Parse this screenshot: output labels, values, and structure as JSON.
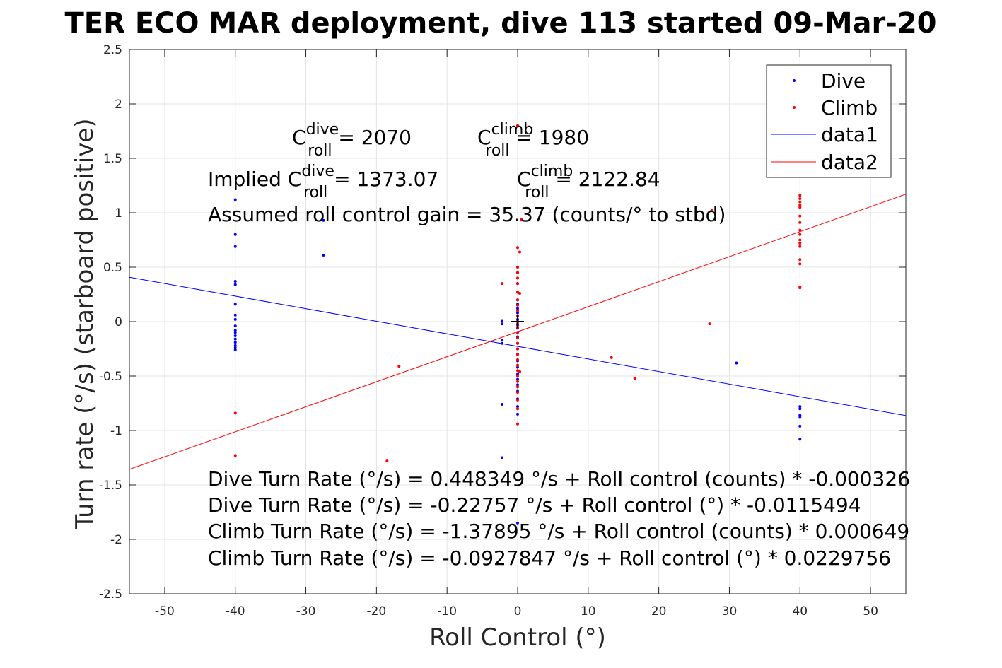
{
  "chart_data": {
    "type": "scatter",
    "title": "TER ECO MAR deployment, dive 113 started 09-Mar-20",
    "xlabel": "Roll Control (°)",
    "ylabel": "Turn rate (°/s) (starboard positive)",
    "xlim": [
      -55,
      55
    ],
    "ylim": [
      -2.5,
      2.5
    ],
    "grid": true,
    "legend_placement": "top-right",
    "x_ticks": [
      "-50",
      "-40",
      "-30",
      "-20",
      "-10",
      "0",
      "10",
      "20",
      "30",
      "40",
      "50"
    ],
    "y_ticks": [
      "-2.5",
      "-2",
      "-1.5",
      "-1",
      "-0.5",
      "0",
      "0.5",
      "1",
      "1.5",
      "2",
      "2.5"
    ],
    "legend": [
      {
        "label": "Dive",
        "marker": "dot",
        "color": "#0000ff"
      },
      {
        "label": "Climb",
        "marker": "dot",
        "color": "#ff0000"
      },
      {
        "label": "data1",
        "marker": "line",
        "color": "#0000ff"
      },
      {
        "label": "data2",
        "marker": "line",
        "color": "#ff0000"
      }
    ],
    "series": [
      {
        "name": "Dive",
        "color": "#0000ff",
        "points": [
          [
            -40,
            1.12
          ],
          [
            -40,
            0.8
          ],
          [
            -40,
            0.69
          ],
          [
            -40,
            0.37
          ],
          [
            -40,
            0.34
          ],
          [
            -40,
            0.16
          ],
          [
            -40,
            0.06
          ],
          [
            -40,
            0.02
          ],
          [
            -40,
            -0.04
          ],
          [
            -40,
            -0.08
          ],
          [
            -40,
            -0.1
          ],
          [
            -40,
            -0.13
          ],
          [
            -40,
            -0.16
          ],
          [
            -40,
            -0.19
          ],
          [
            -40,
            -0.22
          ],
          [
            -40,
            -0.24
          ],
          [
            -40,
            -0.26
          ],
          [
            -27.5,
            0.93
          ],
          [
            -27.5,
            0.61
          ],
          [
            -2.2,
            0.01
          ],
          [
            -2.2,
            -0.02
          ],
          [
            -2.2,
            -0.17
          ],
          [
            -2.2,
            -0.2
          ],
          [
            -2.2,
            -0.76
          ],
          [
            -2.2,
            -1.25
          ],
          [
            0,
            0.45
          ],
          [
            0,
            0.35
          ],
          [
            0,
            0.27
          ],
          [
            0,
            0.2
          ],
          [
            0,
            0.16
          ],
          [
            0,
            0.12
          ],
          [
            0,
            0.08
          ],
          [
            0,
            0.05
          ],
          [
            0,
            0.02
          ],
          [
            0,
            0
          ],
          [
            0,
            -0.03
          ],
          [
            0,
            -0.06
          ],
          [
            0,
            -0.1
          ],
          [
            0,
            -0.14
          ],
          [
            0,
            -0.2
          ],
          [
            0,
            -0.25
          ],
          [
            0,
            -0.3
          ],
          [
            0,
            -0.36
          ],
          [
            0,
            -0.42
          ],
          [
            0,
            -0.48
          ],
          [
            0,
            -0.53
          ],
          [
            0,
            -0.58
          ],
          [
            0,
            -0.64
          ],
          [
            0,
            -0.71
          ],
          [
            0,
            -0.78
          ],
          [
            0,
            -0.85
          ],
          [
            0,
            -1.85
          ],
          [
            31,
            -0.38
          ],
          [
            40,
            -0.78
          ],
          [
            40,
            -0.8
          ],
          [
            40,
            -0.86
          ],
          [
            40,
            -0.88
          ],
          [
            40,
            -0.96
          ],
          [
            40,
            -1.08
          ]
        ]
      },
      {
        "name": "Climb",
        "color": "#ff0000",
        "points": [
          [
            -40,
            -0.84
          ],
          [
            -40,
            -1.23
          ],
          [
            -18.5,
            -1.28
          ],
          [
            -16.8,
            -0.41
          ],
          [
            -2.2,
            0.35
          ],
          [
            0,
            1.8
          ],
          [
            0.5,
            0.94
          ],
          [
            0,
            0.68
          ],
          [
            0.3,
            0.64
          ],
          [
            0,
            0.5
          ],
          [
            0,
            0.45
          ],
          [
            0,
            0.4
          ],
          [
            0,
            0.35
          ],
          [
            0,
            0.27
          ],
          [
            0.3,
            0.26
          ],
          [
            0,
            0.2
          ],
          [
            0,
            0.15
          ],
          [
            0,
            0.1
          ],
          [
            0,
            0.05
          ],
          [
            0,
            -0.02
          ],
          [
            0,
            -0.05
          ],
          [
            0,
            -0.1
          ],
          [
            0,
            -0.15
          ],
          [
            0,
            -0.2
          ],
          [
            0,
            -0.25
          ],
          [
            0,
            -0.3
          ],
          [
            0,
            -0.35
          ],
          [
            0,
            -0.4
          ],
          [
            0,
            -0.45
          ],
          [
            0.3,
            -0.46
          ],
          [
            0,
            -0.5
          ],
          [
            0,
            -0.55
          ],
          [
            0,
            -0.6
          ],
          [
            0,
            -0.65
          ],
          [
            0,
            -0.72
          ],
          [
            0,
            -0.8
          ],
          [
            0,
            -0.94
          ],
          [
            13.3,
            -0.33
          ],
          [
            16.6,
            -0.52
          ],
          [
            27.2,
            -0.02
          ],
          [
            27.5,
            1.02
          ],
          [
            40,
            1.16
          ],
          [
            40,
            1.13
          ],
          [
            40,
            1.1
          ],
          [
            40,
            1.07
          ],
          [
            40,
            1.05
          ],
          [
            40,
            0.97
          ],
          [
            40,
            0.91
          ],
          [
            40,
            0.84
          ],
          [
            40,
            0.8
          ],
          [
            40,
            0.75
          ],
          [
            40,
            0.72
          ],
          [
            40,
            0.69
          ],
          [
            40,
            0.57
          ],
          [
            40,
            0.53
          ],
          [
            40,
            0.32
          ],
          [
            40,
            0.31
          ]
        ]
      }
    ],
    "lines": [
      {
        "name": "data1",
        "color": "#0000ff",
        "intercept": -0.22757,
        "slope": -0.0115494
      },
      {
        "name": "data2",
        "color": "#ff0000",
        "intercept": -0.0927847,
        "slope": 0.0229756
      }
    ],
    "annotations": {
      "c_roll_dive_label": "C",
      "c_roll_dive_sup": "dive",
      "c_roll_dive_sub": "roll",
      "c_roll_dive_val": " = 2070",
      "c_roll_climb_label": "C",
      "c_roll_climb_sup": "climb",
      "c_roll_climb_sub": "roll",
      "c_roll_climb_val": " = 1980",
      "implied_prefix": "Implied C",
      "implied_dive_sup": "dive",
      "implied_dive_sub": "roll",
      "implied_dive_val": " = 1373.07",
      "implied_climb_label": "C",
      "implied_climb_sup": "climb",
      "implied_climb_sub": "roll",
      "implied_climb_val": " = 2122.84",
      "gain": "Assumed roll control gain = 35.37 (counts/° to stbd)",
      "eq1": "Dive Turn Rate (°/s) = 0.448349 °/s + Roll control (counts) * -0.000326",
      "eq2": "Dive Turn Rate (°/s) = -0.22757 °/s + Roll control (°) * -0.0115494",
      "eq3": "Climb Turn Rate (°/s) = -1.37895 °/s + Roll control (counts) * 0.000649",
      "eq4": "Climb Turn Rate (°/s) = -0.0927847 °/s + Roll control (°) * 0.0229756"
    }
  }
}
